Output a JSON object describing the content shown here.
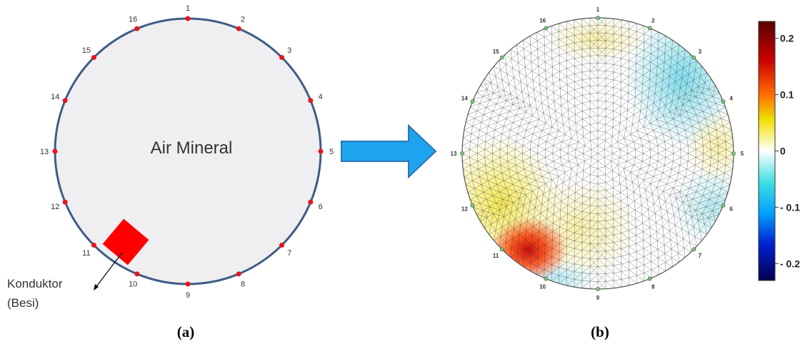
{
  "panel_a": {
    "center_label": "Air Mineral",
    "conductor_label": [
      "Konduktor",
      "(Besi)"
    ],
    "electrodes": [
      "1",
      "2",
      "3",
      "4",
      "5",
      "6",
      "7",
      "8",
      "9",
      "10",
      "11",
      "12",
      "13",
      "14",
      "15",
      "16"
    ],
    "colors": {
      "ring": "#3f5c86",
      "fill": "#efeff1",
      "electrode": "#e8141c",
      "conductor": "#ff0000"
    }
  },
  "arrow": {
    "color": "#1ea4ee",
    "outline": "#2e75b6"
  },
  "panel_b": {
    "electrodes": [
      "1",
      "2",
      "3",
      "4",
      "5",
      "6",
      "7",
      "8",
      "9",
      "10",
      "11",
      "12",
      "13",
      "14",
      "15",
      "16"
    ],
    "colorbar": {
      "ticks": [
        {
          "value": 0.2,
          "label": "0.2"
        },
        {
          "value": 0.1,
          "label": "0.1"
        },
        {
          "value": 0,
          "label": "0"
        },
        {
          "value": -0.1,
          "label": "- 0.1"
        },
        {
          "value": -0.2,
          "label": "- 0.2"
        }
      ],
      "min": -0.23,
      "max": 0.23
    }
  },
  "captions": {
    "a": "(a)",
    "b": "(b)"
  }
}
